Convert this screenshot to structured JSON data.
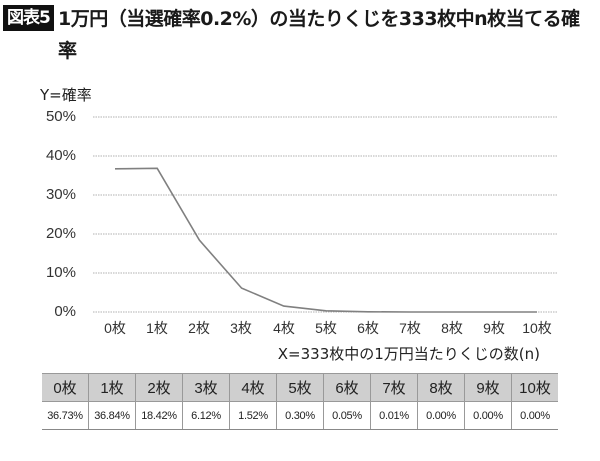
{
  "header": {
    "figure_label": "図表5",
    "title": "1万円（当選確率0.2%）の当たりくじを333枚中n枚当てる確率"
  },
  "axes": {
    "y_label": "Y=確率",
    "x_label": "X=333枚中の1万円当たりくじの数(n)",
    "y_ticks": [
      "50%",
      "40%",
      "30%",
      "20%",
      "10%",
      "0%"
    ],
    "x_ticks": [
      "0枚",
      "1枚",
      "2枚",
      "3枚",
      "4枚",
      "5枚",
      "6枚",
      "7枚",
      "8枚",
      "9枚",
      "10枚"
    ]
  },
  "table": {
    "headers": [
      "0枚",
      "1枚",
      "2枚",
      "3枚",
      "4枚",
      "5枚",
      "6枚",
      "7枚",
      "8枚",
      "9枚",
      "10枚"
    ],
    "values": [
      "36.73%",
      "36.84%",
      "18.42%",
      "6.12%",
      "1.52%",
      "0.30%",
      "0.05%",
      "0.01%",
      "0.00%",
      "0.00%",
      "0.00%"
    ]
  },
  "colors": {
    "line": "#808080",
    "grid": "#b0b0b0",
    "table_header_bg": "#cfcfcf",
    "badge_bg": "#111111"
  },
  "chart_data": {
    "type": "line",
    "title": "1万円（当選確率0.2%）の当たりくじを333枚中n枚当てる確率",
    "xlabel": "X=333枚中の1万円当たりくじの数(n)",
    "ylabel": "Y=確率",
    "categories": [
      "0枚",
      "1枚",
      "2枚",
      "3枚",
      "4枚",
      "5枚",
      "6枚",
      "7枚",
      "8枚",
      "9枚",
      "10枚"
    ],
    "series": [
      {
        "name": "確率",
        "values": [
          36.73,
          36.84,
          18.42,
          6.12,
          1.52,
          0.3,
          0.05,
          0.01,
          0.0,
          0.0,
          0.0
        ]
      }
    ],
    "ylim": [
      0,
      50
    ],
    "y_ticks": [
      0,
      10,
      20,
      30,
      40,
      50
    ],
    "y_unit": "%",
    "grid": true,
    "legend": "none"
  }
}
